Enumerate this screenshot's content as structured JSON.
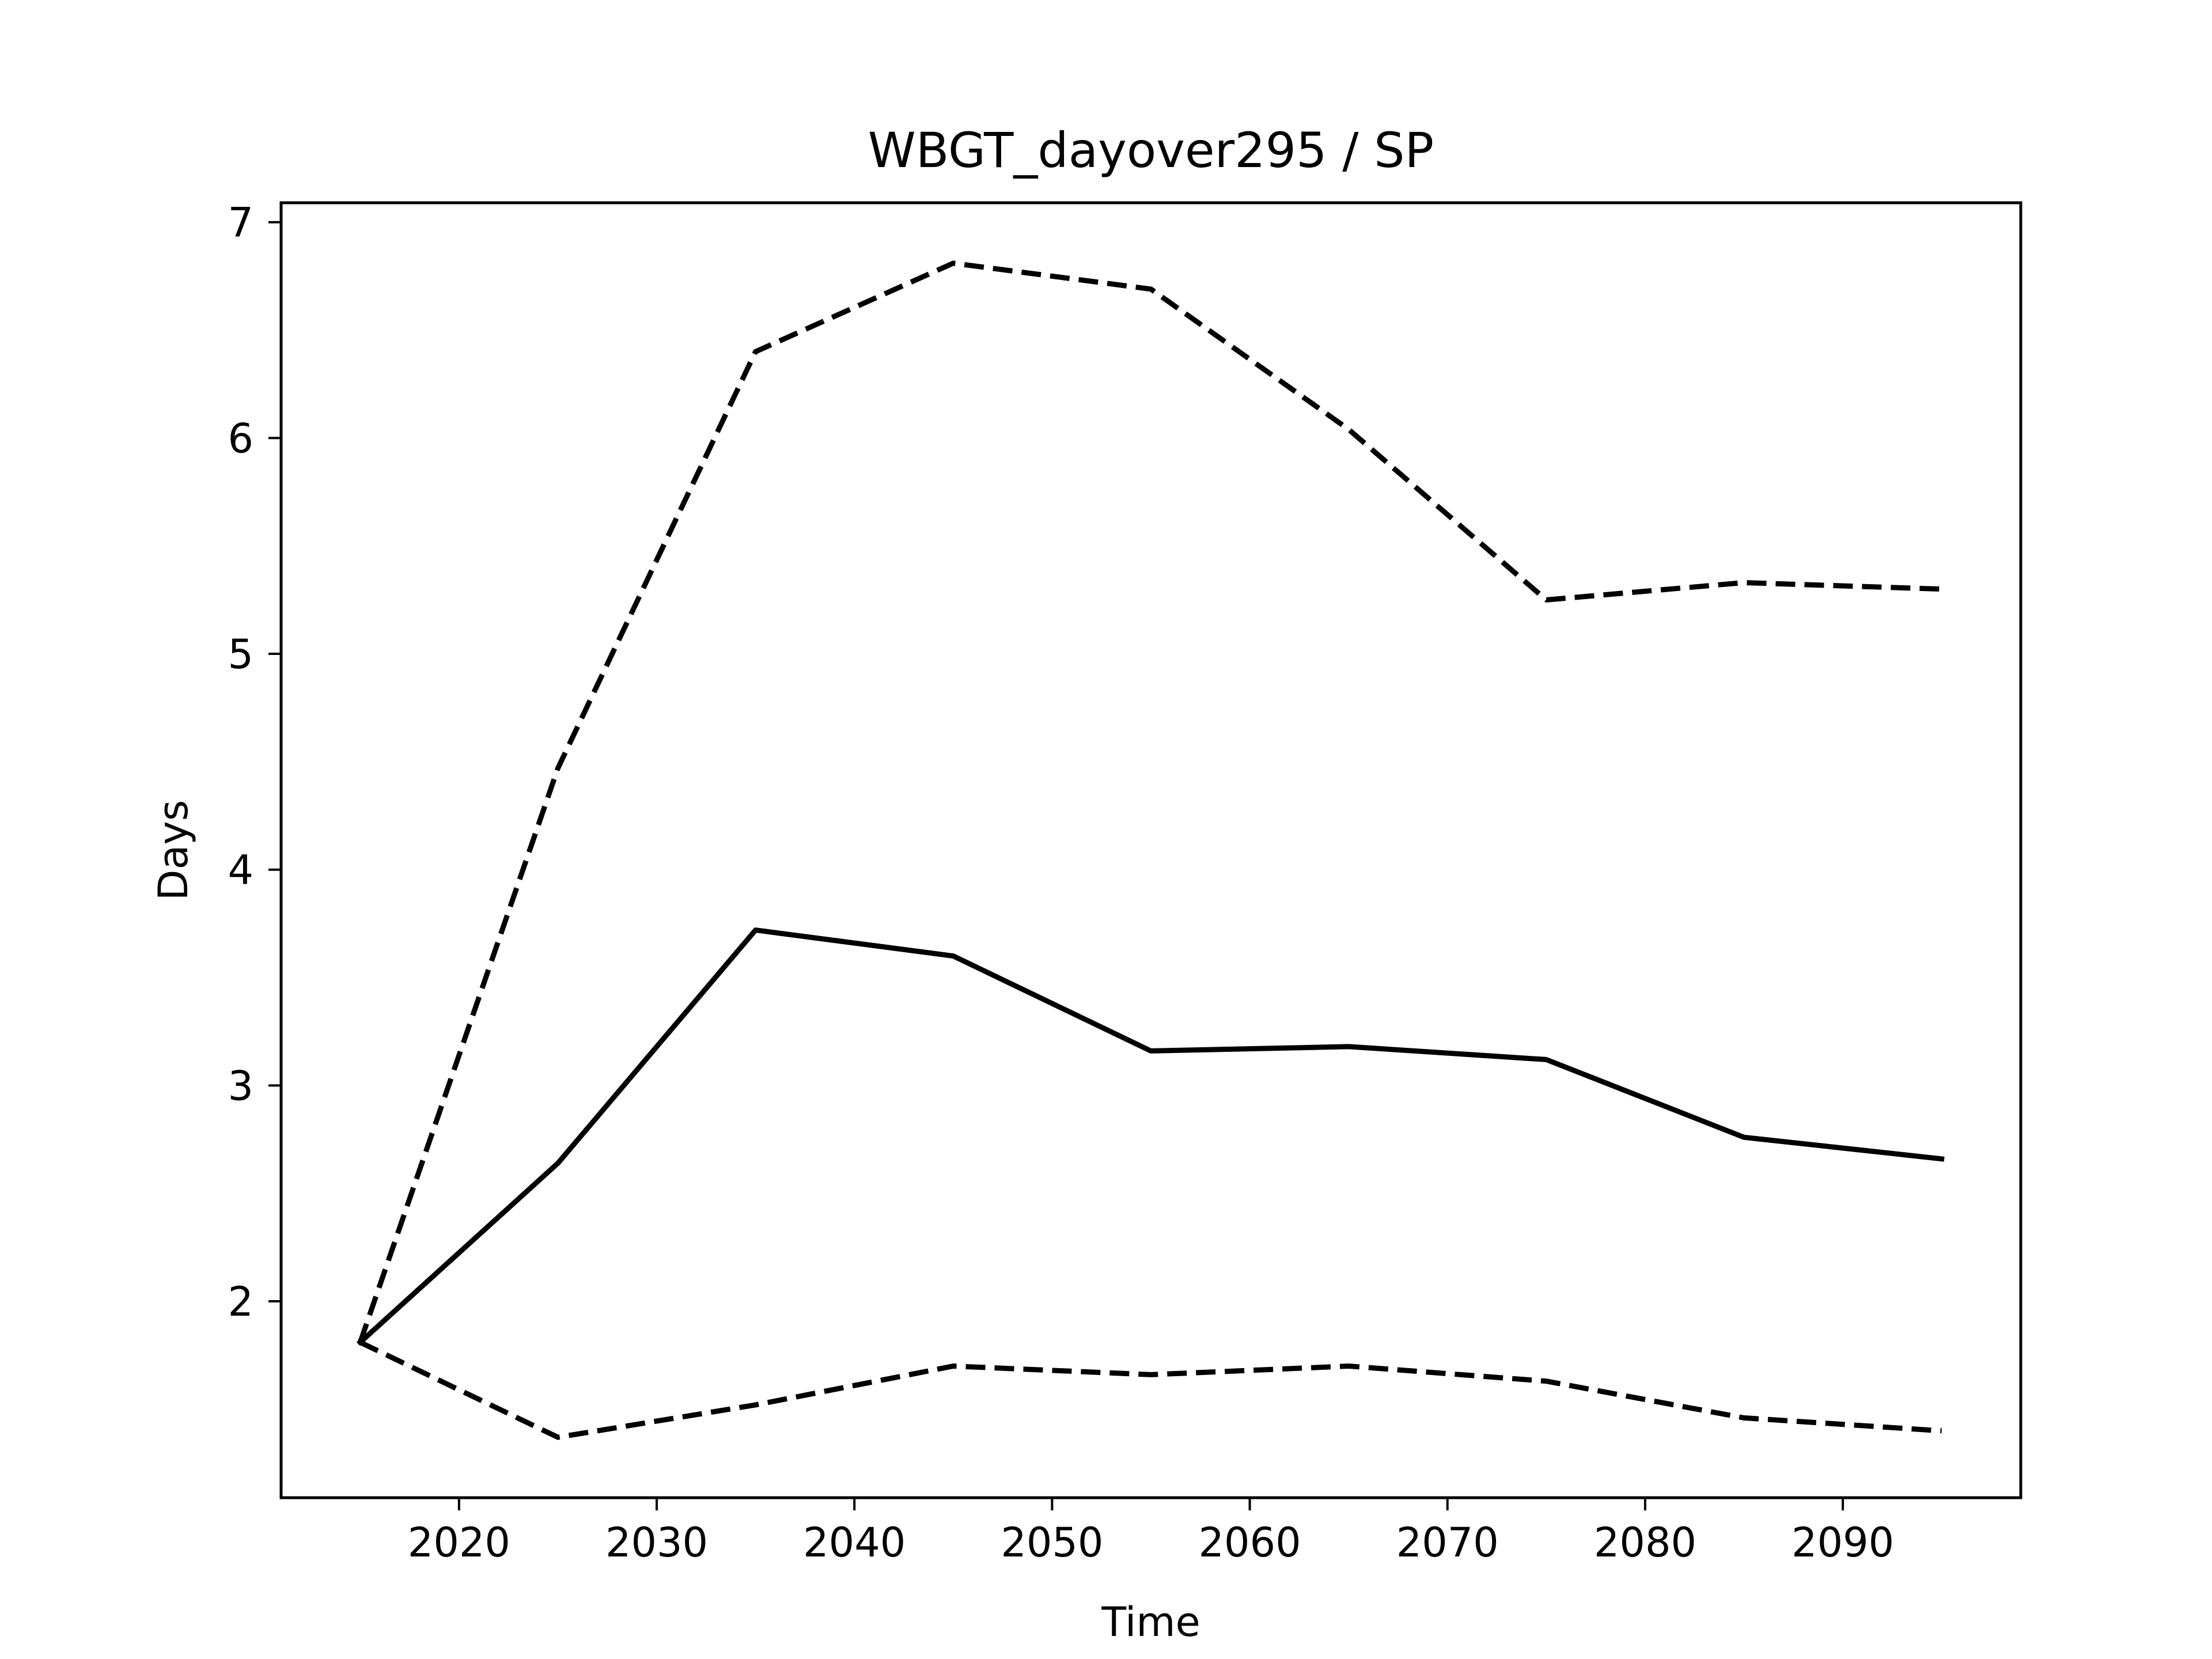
{
  "chart_data": {
    "type": "line",
    "title": "WBGT_dayover295 / SP",
    "xlabel": "Time",
    "ylabel": "Days",
    "x": [
      2015,
      2025,
      2035,
      2045,
      2055,
      2065,
      2075,
      2085,
      2095
    ],
    "xlim": [
      2011,
      2099
    ],
    "ylim": [
      1.09,
      7.09
    ],
    "xticks": [
      2020,
      2030,
      2040,
      2050,
      2060,
      2070,
      2080,
      2090
    ],
    "yticks": [
      2,
      3,
      4,
      5,
      6,
      7
    ],
    "grid": false,
    "legend": "none",
    "series": [
      {
        "style": "dashed",
        "color": "#000000",
        "values": [
          1.81,
          4.47,
          6.4,
          6.81,
          6.69,
          6.04,
          5.25,
          5.33,
          5.3
        ]
      },
      {
        "style": "solid",
        "color": "#000000",
        "values": [
          1.81,
          2.64,
          3.72,
          3.6,
          3.16,
          3.18,
          3.12,
          2.76,
          2.66
        ]
      },
      {
        "style": "dashed",
        "color": "#000000",
        "values": [
          1.81,
          1.37,
          1.52,
          1.7,
          1.66,
          1.7,
          1.63,
          1.46,
          1.4
        ]
      }
    ]
  }
}
